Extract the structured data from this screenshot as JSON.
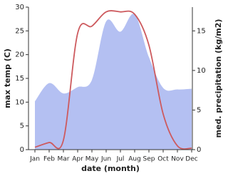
{
  "chart_data": {
    "type": "line-area",
    "categories": [
      "Jan",
      "Feb",
      "Mar",
      "Apr",
      "May",
      "Jun",
      "Jul",
      "Aug",
      "Sep",
      "Oct",
      "Nov",
      "Dec"
    ],
    "x_label": "date (month)",
    "y_label": "max temp (C)",
    "y2_label": "med. precipitation (kg/m2)",
    "ylim": [
      0,
      30
    ],
    "yticks": [
      0,
      5,
      10,
      15,
      20,
      25,
      30
    ],
    "y2lim": [
      0,
      18
    ],
    "y2ticks": [
      0,
      5,
      10,
      15
    ],
    "series": [
      {
        "name": "precipitation",
        "type": "area",
        "axis": "y2",
        "color": "#b4c0f2",
        "values": [
          6.1,
          8.4,
          7.1,
          7.9,
          8.8,
          16.2,
          14.9,
          17.1,
          11.7,
          7.8,
          7.6,
          7.7
        ]
      },
      {
        "name": "max temp",
        "type": "line",
        "axis": "y",
        "color": "#cd5a5e",
        "values": [
          0.5,
          1.5,
          2,
          24.5,
          26,
          29,
          29,
          28.5,
          22,
          7.5,
          0.8,
          0.3
        ]
      }
    ]
  }
}
